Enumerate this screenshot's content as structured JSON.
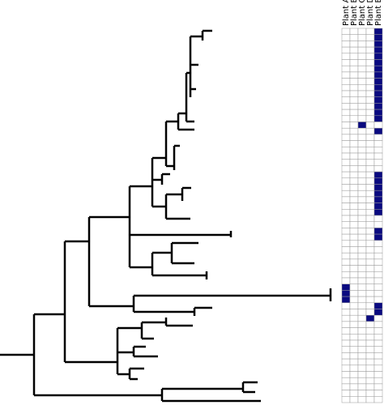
{
  "heatmap": {
    "columns": [
      "Plant A",
      "Plant B",
      "Plant C",
      "Plant D",
      "Plant E"
    ],
    "color": "#0a0a80",
    "rows": [
      [
        0,
        0,
        0,
        0,
        1
      ],
      [
        0,
        0,
        0,
        0,
        1
      ],
      [
        0,
        0,
        0,
        0,
        1
      ],
      [
        0,
        0,
        0,
        0,
        1
      ],
      [
        0,
        0,
        0,
        0,
        1
      ],
      [
        0,
        0,
        0,
        0,
        1
      ],
      [
        0,
        0,
        0,
        0,
        1
      ],
      [
        0,
        0,
        0,
        0,
        1
      ],
      [
        0,
        0,
        0,
        0,
        1
      ],
      [
        0,
        0,
        0,
        0,
        1
      ],
      [
        0,
        0,
        0,
        0,
        1
      ],
      [
        0,
        0,
        0,
        0,
        1
      ],
      [
        0,
        0,
        0,
        0,
        1
      ],
      [
        0,
        0,
        0,
        0,
        1
      ],
      [
        0,
        0,
        0,
        0,
        1
      ],
      [
        0,
        0,
        1,
        0,
        0
      ],
      [
        0,
        0,
        0,
        0,
        1
      ],
      [
        0,
        0,
        0,
        0,
        0
      ],
      [
        0,
        0,
        0,
        0,
        0
      ],
      [
        0,
        0,
        0,
        0,
        0
      ],
      [
        0,
        0,
        0,
        0,
        0
      ],
      [
        0,
        0,
        0,
        0,
        0
      ],
      [
        0,
        0,
        0,
        0,
        0
      ],
      [
        0,
        0,
        0,
        0,
        1
      ],
      [
        0,
        0,
        0,
        0,
        1
      ],
      [
        0,
        0,
        0,
        0,
        1
      ],
      [
        0,
        0,
        0,
        0,
        1
      ],
      [
        0,
        0,
        0,
        0,
        1
      ],
      [
        0,
        0,
        0,
        0,
        1
      ],
      [
        0,
        0,
        0,
        0,
        1
      ],
      [
        0,
        0,
        0,
        0,
        0
      ],
      [
        0,
        0,
        0,
        0,
        0
      ],
      [
        0,
        0,
        0,
        0,
        1
      ],
      [
        0,
        0,
        0,
        0,
        1
      ],
      [
        0,
        0,
        0,
        0,
        0
      ],
      [
        0,
        0,
        0,
        0,
        0
      ],
      [
        0,
        0,
        0,
        0,
        0
      ],
      [
        0,
        0,
        0,
        0,
        0
      ],
      [
        0,
        0,
        0,
        0,
        0
      ],
      [
        0,
        0,
        0,
        0,
        0
      ],
      [
        0,
        0,
        0,
        0,
        0
      ],
      [
        1,
        0,
        0,
        0,
        0
      ],
      [
        1,
        0,
        0,
        0,
        0
      ],
      [
        1,
        0,
        0,
        0,
        0
      ],
      [
        0,
        0,
        0,
        0,
        1
      ],
      [
        0,
        0,
        0,
        0,
        1
      ],
      [
        0,
        0,
        0,
        1,
        0
      ],
      [
        0,
        0,
        0,
        0,
        0
      ],
      [
        0,
        0,
        0,
        0,
        0
      ],
      [
        0,
        0,
        0,
        0,
        0
      ],
      [
        0,
        0,
        0,
        0,
        0
      ],
      [
        0,
        0,
        0,
        0,
        0
      ],
      [
        0,
        0,
        0,
        0,
        0
      ],
      [
        0,
        0,
        0,
        0,
        0
      ],
      [
        0,
        0,
        0,
        0,
        0
      ],
      [
        0,
        0,
        0,
        0,
        0
      ],
      [
        0,
        0,
        0,
        0,
        0
      ],
      [
        0,
        0,
        0,
        0,
        0
      ],
      [
        0,
        0,
        0,
        0,
        0
      ],
      [
        0,
        0,
        0,
        0,
        0
      ]
    ]
  }
}
